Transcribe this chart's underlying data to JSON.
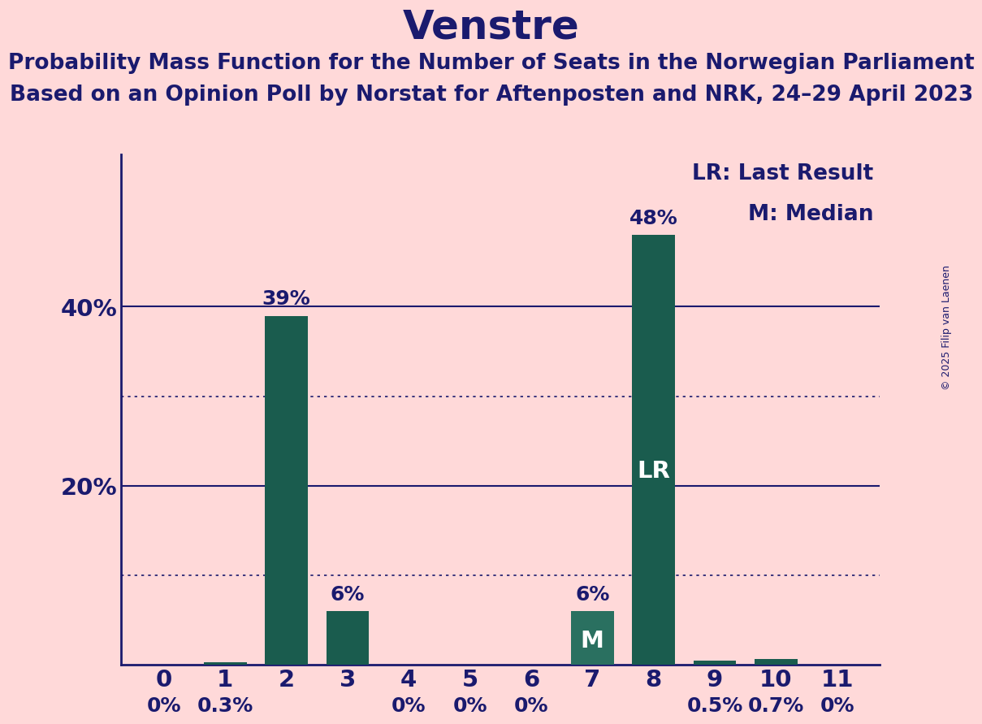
{
  "title": "Venstre",
  "subtitle1": "Probability Mass Function for the Number of Seats in the Norwegian Parliament",
  "subtitle2": "Based on an Opinion Poll by Norstat for Aftenposten and NRK, 24–29 April 2023",
  "copyright": "© 2025 Filip van Laenen",
  "categories": [
    0,
    1,
    2,
    3,
    4,
    5,
    6,
    7,
    8,
    9,
    10,
    11
  ],
  "values": [
    0.0,
    0.3,
    39.0,
    6.0,
    0.0,
    0.0,
    0.0,
    6.0,
    48.0,
    0.5,
    0.7,
    0.0
  ],
  "bar_labels": [
    "0%",
    "0.3%",
    "39%",
    "6%",
    "0%",
    "0%",
    "0%",
    "6%",
    "48%",
    "0.5%",
    "0.7%",
    "0%"
  ],
  "median_bar_idx": 7,
  "lr_bar_idx": 8,
  "bar_color": "#1a5c4e",
  "bar_color_median": "#2a7060",
  "background_color": "#ffd9d9",
  "text_color": "#1a1a6e",
  "title_fontsize": 36,
  "subtitle_fontsize": 19,
  "label_fontsize": 18,
  "tick_fontsize": 21,
  "ytick_labels": [
    "20%",
    "40%"
  ],
  "ytick_values": [
    20,
    40
  ],
  "ylim": [
    0,
    57
  ],
  "legend_text1": "LR: Last Result",
  "legend_text2": "M: Median",
  "legend_fontsize": 19,
  "copyright_fontsize": 9
}
